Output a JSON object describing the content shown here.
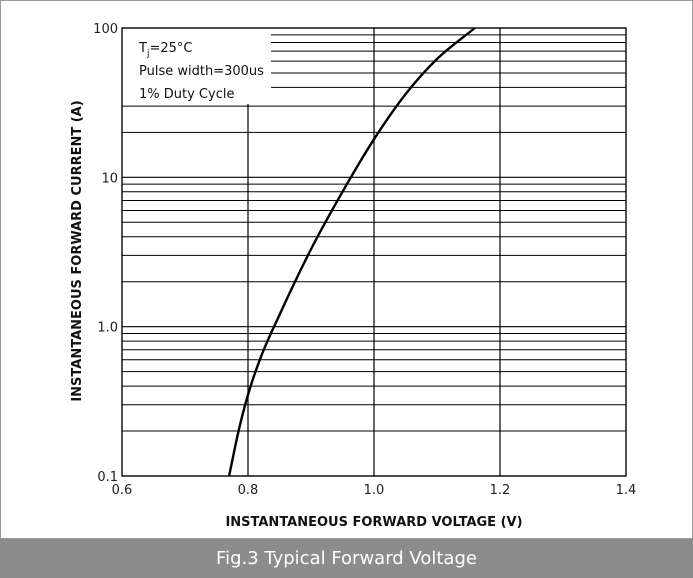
{
  "caption": "Fig.3 Typical Forward Voltage",
  "chart_data": {
    "type": "line",
    "title": "",
    "xlabel": "INSTANTANEOUS FORWARD VOLTAGE (V)",
    "ylabel": "INSTANTANEOUS FORWARD CURRENT (A)",
    "x_scale": "linear",
    "y_scale": "log",
    "xlim": [
      0.6,
      1.4
    ],
    "ylim": [
      0.1,
      100
    ],
    "x_ticks": [
      0.6,
      0.8,
      1.0,
      1.2,
      1.4
    ],
    "x_tick_labels": [
      "0.6",
      "0.8",
      "1.0",
      "1.2",
      "1.4"
    ],
    "y_ticks": [
      0.1,
      1,
      10,
      100
    ],
    "y_tick_labels": [
      "0.1",
      "1.0",
      "10",
      "100"
    ],
    "grid": true,
    "legend": "none",
    "annotations": {
      "temp_main": "T",
      "temp_sub": "j",
      "temp_rest": "=25°C",
      "pulse": "Pulse width=300us",
      "duty": "1% Duty Cycle"
    },
    "series": [
      {
        "x": [
          0.77,
          0.785,
          0.8,
          0.82,
          0.85,
          0.9,
          0.95,
          1.0,
          1.05,
          1.1,
          1.16
        ],
        "y": [
          0.1,
          0.2,
          0.35,
          0.62,
          1.2,
          3.3,
          8.0,
          18.0,
          36.0,
          62.0,
          100.0
        ]
      }
    ],
    "colors": {
      "line": "#000000",
      "grid": "#000000"
    }
  }
}
